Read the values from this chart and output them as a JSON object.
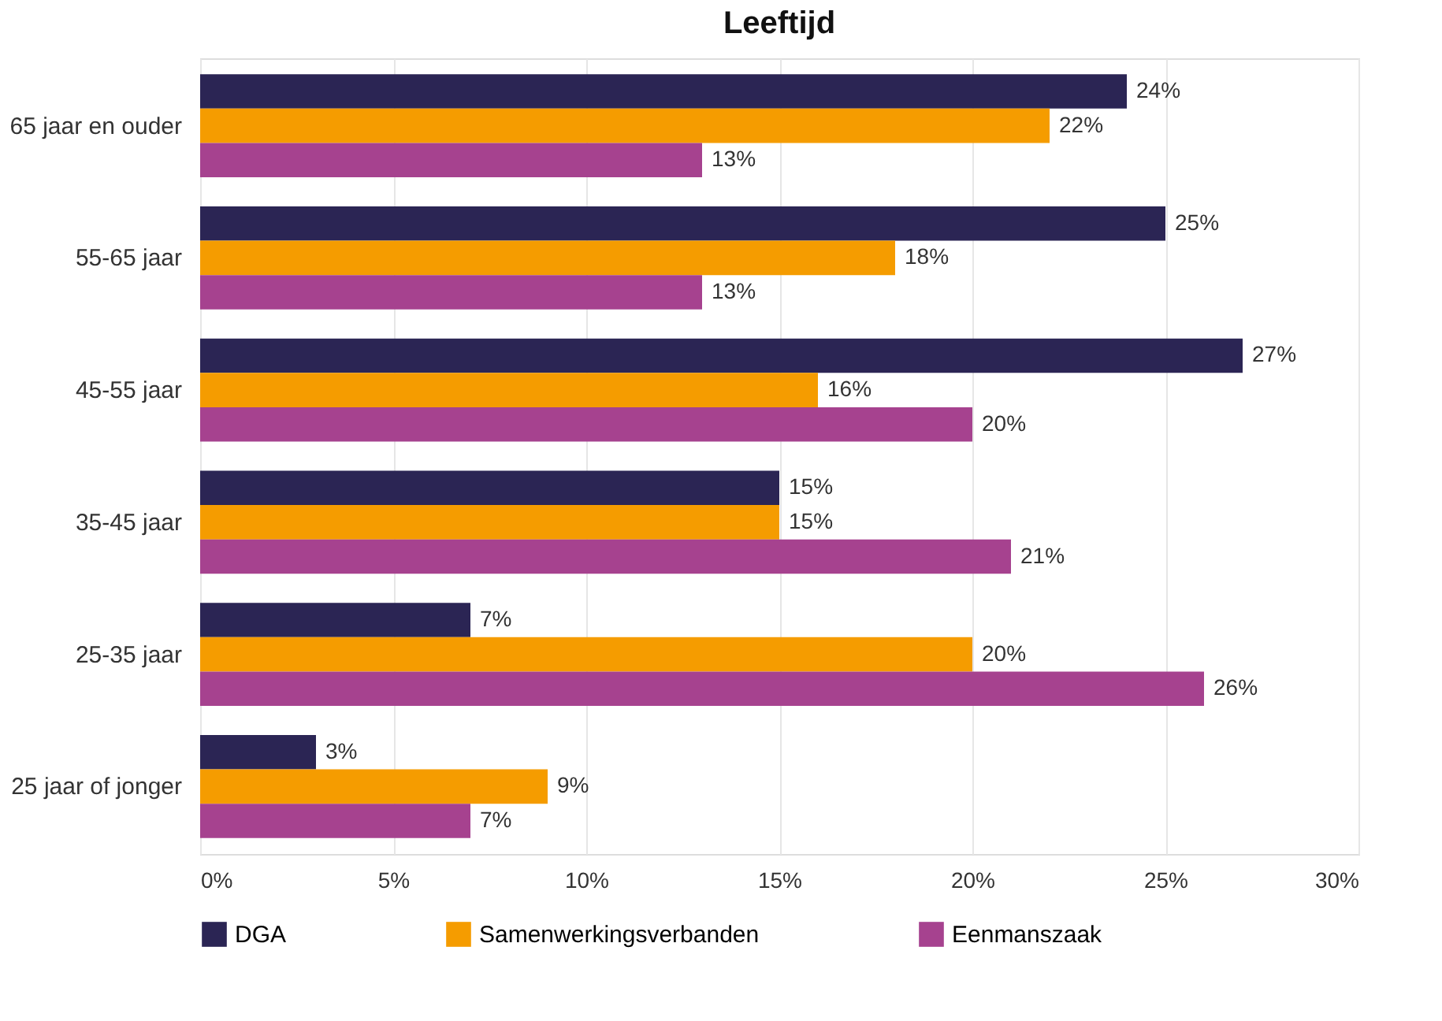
{
  "chart_data": {
    "type": "bar",
    "orientation": "horizontal",
    "title": "Leeftijd",
    "categories": [
      "65 jaar en ouder",
      "55-65 jaar",
      "45-55 jaar",
      "35-45 jaar",
      "25-35 jaar",
      "25 jaar of jonger"
    ],
    "series": [
      {
        "name": "DGA",
        "color": "#2b2554",
        "values": [
          24,
          25,
          27,
          15,
          7,
          3
        ],
        "value_labels": [
          "24%",
          "25%",
          "27%",
          "15%",
          "7%",
          "3%"
        ]
      },
      {
        "name": "Samenwerkingsverbanden",
        "color": "#f59c00",
        "values": [
          22,
          18,
          16,
          15,
          20,
          9
        ],
        "value_labels": [
          "22%",
          "18%",
          "16%",
          "15%",
          "20%",
          "9%"
        ]
      },
      {
        "name": "Eenmanszaak",
        "color": "#a6428f",
        "values": [
          13,
          13,
          20,
          21,
          26,
          7
        ],
        "value_labels": [
          "13%",
          "13%",
          "20%",
          "21%",
          "26%",
          "7%"
        ]
      }
    ],
    "xlim": [
      0,
      30
    ],
    "xticks": [
      {
        "value": 0,
        "label": "0%"
      },
      {
        "value": 5,
        "label": "5%"
      },
      {
        "value": 10,
        "label": "10%"
      },
      {
        "value": 15,
        "label": "15%"
      },
      {
        "value": 20,
        "label": "20%"
      },
      {
        "value": 25,
        "label": "25%"
      },
      {
        "value": 30,
        "label": "30%"
      }
    ],
    "grid": "x",
    "legend": "bottom"
  }
}
